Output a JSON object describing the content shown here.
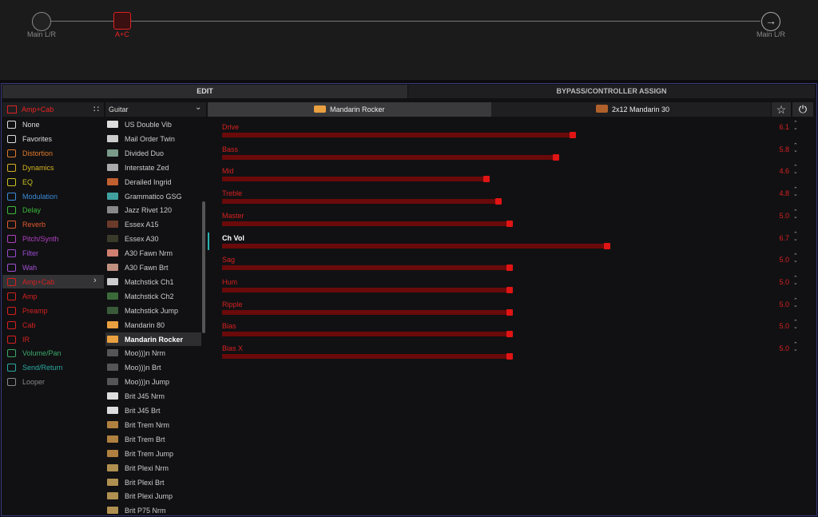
{
  "signal_chain": {
    "input": "Main L/R",
    "block": "A+C",
    "output": "Main L/R"
  },
  "tabs": [
    "EDIT",
    "BYPASS/CONTROLLER ASSIGN"
  ],
  "category_header": "Amp+Cab",
  "categories": [
    "None",
    "Favorites",
    "Distortion",
    "Dynamics",
    "EQ",
    "Modulation",
    "Delay",
    "Reverb",
    "Pitch/Synth",
    "Filter",
    "Wah",
    "Amp+Cab",
    "Amp",
    "Preamp",
    "Cab",
    "IR",
    "Volume/Pan",
    "Send/Return",
    "Looper"
  ],
  "model_header": "Guitar",
  "models": [
    "US Double Vib",
    "Mail Order Twin",
    "Divided Duo",
    "Interstate Zed",
    "Derailed Ingrid",
    "Grammatico GSG",
    "Jazz Rivet 120",
    "Essex A15",
    "Essex A30",
    "A30 Fawn Nrm",
    "A30 Fawn Brt",
    "Matchstick Ch1",
    "Matchstick Ch2",
    "Matchstick Jump",
    "Mandarin 80",
    "Mandarin Rocker",
    "Moo)))n Nrm",
    "Moo)))n Brt",
    "Moo)))n Jump",
    "Brit J45 Nrm",
    "Brit J45 Brt",
    "Brit Trem Nrm",
    "Brit Trem Brt",
    "Brit Trem Jump",
    "Brit Plexi Nrm",
    "Brit Plexi Brt",
    "Brit Plexi Jump",
    "Brit P75 Nrm"
  ],
  "amp_tabs": [
    "Mandarin Rocker",
    "2x12 Mandarin 30"
  ],
  "slider_range": [
    0,
    10
  ],
  "params": [
    {
      "name": "Drive",
      "value": 6.1
    },
    {
      "name": "Bass",
      "value": 5.8
    },
    {
      "name": "Mid",
      "value": 4.6
    },
    {
      "name": "Treble",
      "value": 4.8
    },
    {
      "name": "Master",
      "value": 5,
      "label": "5.0"
    },
    {
      "name": "Ch Vol",
      "value": 6.7
    },
    {
      "name": "Sag",
      "value": 5,
      "label": "5.0"
    },
    {
      "name": "Hum",
      "value": 5,
      "label": "5.0"
    },
    {
      "name": "Ripple",
      "value": 5,
      "label": "5.0"
    },
    {
      "name": "Bias",
      "value": 5,
      "label": "5.0"
    },
    {
      "name": "Bias X",
      "value": 5,
      "label": "5.0"
    }
  ]
}
